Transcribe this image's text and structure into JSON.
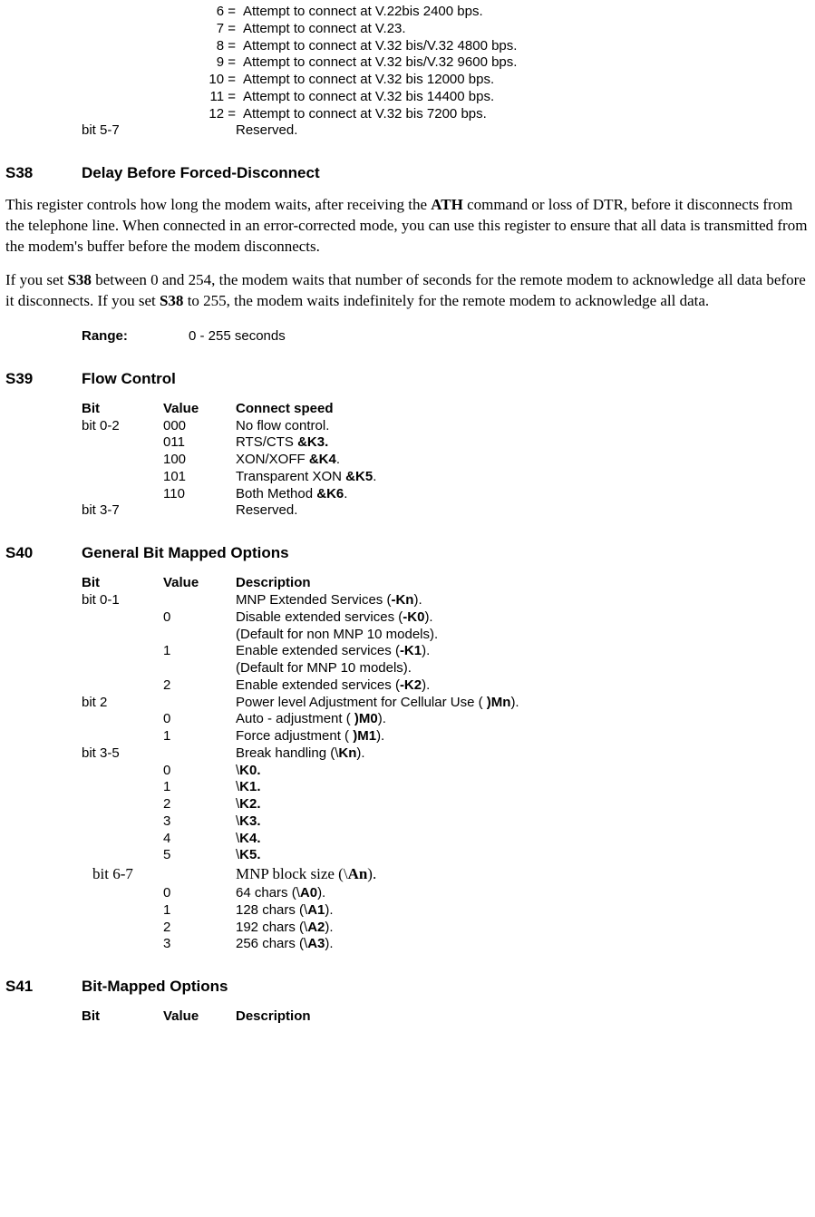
{
  "top_list": [
    {
      "k": "6 =",
      "d": "Attempt to connect at V.22bis 2400 bps."
    },
    {
      "k": "7 =",
      "d": "Attempt to connect at V.23."
    },
    {
      "k": "8 =",
      "d": "Attempt to connect at V.32 bis/V.32 4800 bps."
    },
    {
      "k": "9 =",
      "d": "Attempt to connect at V.32 bis/V.32 9600 bps."
    },
    {
      "k": "10 =",
      "d": "Attempt to connect at V.32 bis 12000 bps."
    },
    {
      "k": "11 =",
      "d": "Attempt to connect at V.32 bis 14400 bps."
    },
    {
      "k": "12 =",
      "d": "Attempt to connect at V.32 bis 7200 bps."
    }
  ],
  "top_reserved": {
    "bit": "bit 5-7",
    "desc": "Reserved."
  },
  "s38": {
    "reg": "S38",
    "title": "Delay Before Forced-Disconnect",
    "para1_a": "This register controls how long the modem waits, after receiving the ",
    "para1_b_bold": "ATH",
    "para1_c": " command or loss of DTR, before it disconnects from the telephone line. When connected in an error-corrected mode, you can use this register to ensure that all data is transmitted from the modem's buffer before the modem disconnects.",
    "para2_a": "If you set ",
    "para2_b_bold": "S38",
    "para2_c": " between 0 and 254, the modem waits that number of seconds for the remote modem to acknowledge all data before it disconnects. If you set ",
    "para2_d_bold": "S38",
    "para2_e": " to 255, the modem waits indefinitely for the remote modem to acknowledge all data.",
    "range_label": "Range:",
    "range_value": "0 - 255 seconds"
  },
  "s39": {
    "reg": "S39",
    "title": "Flow Control",
    "hdr": {
      "bit": "Bit",
      "val": "Value",
      "desc": "Connect speed"
    },
    "rows": [
      {
        "bit": "bit 0-2",
        "val": "000",
        "desc": "No flow control."
      },
      {
        "bit": "",
        "val": "011",
        "pre": "RTS/CTS ",
        "bold": "&K3."
      },
      {
        "bit": "",
        "val": "100",
        "pre": "XON/XOFF ",
        "bold": "&K4",
        "post": "."
      },
      {
        "bit": "",
        "val": "101",
        "pre": "Transparent XON ",
        "bold": "&K5",
        "post": "."
      },
      {
        "bit": "",
        "val": "110",
        "pre": "Both Method ",
        "bold": "&K6",
        "post": "."
      },
      {
        "bit": "bit 3-7",
        "val": "",
        "desc": "Reserved."
      }
    ]
  },
  "s40": {
    "reg": "S40",
    "title": "General Bit Mapped Options",
    "hdr": {
      "bit": "Bit",
      "val": "Value",
      "desc": "Description"
    },
    "rows": [
      {
        "bit": "bit 0-1",
        "val": "",
        "pre": "MNP Extended Services (",
        "bold": "-Kn",
        "post": ")."
      },
      {
        "bit": "",
        "val": "0",
        "pre": "Disable extended services (",
        "bold": "-K0",
        "post": ")."
      },
      {
        "bit": "",
        "val": "",
        "desc": "(Default for non MNP 10 models)."
      },
      {
        "bit": "",
        "val": "1",
        "pre": "Enable extended services (",
        "bold": "-K1",
        "post": ")."
      },
      {
        "bit": "",
        "val": "",
        "desc": "(Default for MNP 10 models)."
      },
      {
        "bit": "",
        "val": "2",
        "pre": "Enable extended services (",
        "bold": "-K2",
        "post": ")."
      },
      {
        "bit": "bit 2",
        "val": "",
        "pre": "Power level Adjustment for Cellular Use ( ",
        "bold": ")Mn",
        "post": ")."
      },
      {
        "bit": "",
        "val": "0",
        "pre": "Auto - adjustment ( ",
        "bold": ")M0",
        "post": ")."
      },
      {
        "bit": "",
        "val": "1",
        "pre": "Force  adjustment ( ",
        "bold": ")M1",
        "post": ")."
      },
      {
        "bit": "bit 3-5",
        "val": "",
        "pre": "Break handling (\\",
        "bold": "Kn",
        "post": ")."
      },
      {
        "bit": "",
        "val": "0",
        "pre": "\\",
        "bold": "K0."
      },
      {
        "bit": "",
        "val": "1",
        "pre": "\\",
        "bold": "K1."
      },
      {
        "bit": "",
        "val": "2",
        "pre": "\\",
        "bold": "K2."
      },
      {
        "bit": "",
        "val": "3",
        "pre": "\\",
        "bold": "K3."
      },
      {
        "bit": "",
        "val": "4",
        "pre": "\\",
        "bold": "K4."
      },
      {
        "bit": "",
        "val": "5",
        "pre": "\\",
        "bold": "K5."
      },
      {
        "bit": "bit 6-7",
        "val": "",
        "pre": "MNP block size (\\",
        "bold": "An",
        "post": ").",
        "serif": true,
        "shift": true
      },
      {
        "bit": "",
        "val": "0",
        "pre": " 64 chars (\\",
        "bold": "A0",
        "post": ")."
      },
      {
        "bit": "",
        "val": "1",
        "pre": "128 chars (\\",
        "bold": "A1",
        "post": ")."
      },
      {
        "bit": "",
        "val": "2",
        "pre": "192 chars (\\",
        "bold": "A2",
        "post": ")."
      },
      {
        "bit": "",
        "val": "3",
        "pre": "256 chars (\\",
        "bold": "A3",
        "post": ")."
      }
    ]
  },
  "s41": {
    "reg": "S41",
    "title": "Bit-Mapped Options",
    "hdr": {
      "bit": "Bit",
      "val": "Value",
      "desc": "Description"
    }
  }
}
